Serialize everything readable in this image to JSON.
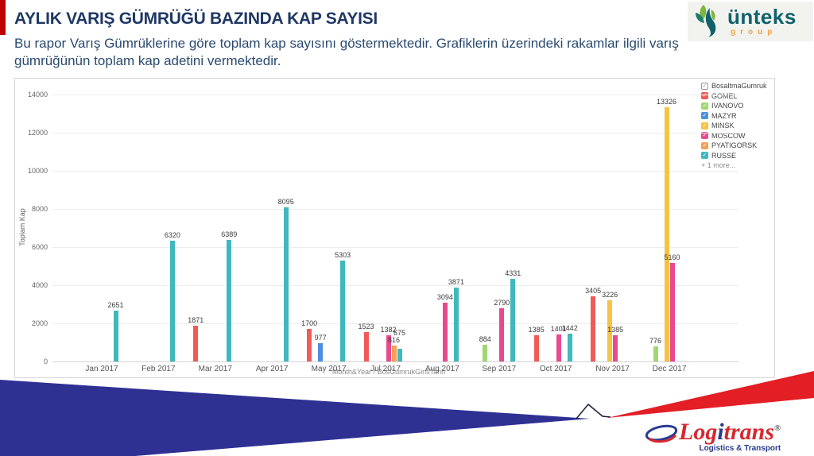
{
  "header": {
    "title": "AYLIK VARIŞ GÜMRÜĞÜ BAZINDA KAP SAYISI",
    "subtitle": "Bu rapor Varış Gümrüklerine göre toplam kap sayısını göstermektedir. Grafiklerin üzerindeki rakamlar ilgili varış gümrüğünün toplam kap adetini vermektedir."
  },
  "unteks_logo": {
    "name": "ünteks",
    "sub": "group"
  },
  "logitrans_logo": {
    "part1": "Log",
    "part2": "i",
    "part3": "trans",
    "reg": "®",
    "tagline": "Logistics & Transport"
  },
  "colors": {
    "accent_red": "#C00000",
    "title_navy": "#1F3864",
    "wedge_blue": "#2E3192",
    "wedge_red": "#E31E25"
  },
  "chart_data": {
    "type": "bar",
    "title": "",
    "xlabel": "Month&Year / BosGumrukGirisTarih",
    "ylabel": "Toplam Kap",
    "ylim": [
      0,
      14000
    ],
    "ytick_step": 2000,
    "grid": true,
    "legend_position": "top-right",
    "legend_header": "BosaltmaGumruk",
    "legend_more": "+ 1 more...",
    "categories": [
      "Jan 2017",
      "Feb 2017",
      "Mar 2017",
      "Apr 2017",
      "May 2017",
      "Jul 2017",
      "Aug 2017",
      "Sep 2017",
      "Oct 2017",
      "Nov 2017",
      "Dec 2017"
    ],
    "series": [
      {
        "name": "GOMEL",
        "color": "#F15B57",
        "values": [
          null,
          null,
          1871,
          null,
          1700,
          1523,
          null,
          null,
          1385,
          3405,
          null
        ]
      },
      {
        "name": "IVANOVO",
        "color": "#9FD870",
        "values": [
          null,
          null,
          null,
          null,
          null,
          null,
          null,
          884,
          null,
          null,
          776
        ]
      },
      {
        "name": "MAZYR",
        "color": "#4D8FDC",
        "values": [
          null,
          null,
          null,
          null,
          977,
          null,
          null,
          null,
          null,
          null,
          null
        ]
      },
      {
        "name": "MINSK",
        "color": "#F6C344",
        "values": [
          null,
          null,
          null,
          null,
          null,
          null,
          null,
          null,
          null,
          3226,
          13326
        ]
      },
      {
        "name": "MOSCOW",
        "color": "#E9498F",
        "values": [
          null,
          null,
          null,
          null,
          null,
          1382,
          3094,
          2790,
          1401,
          1385,
          5160
        ]
      },
      {
        "name": "PYATIGORSK",
        "color": "#F5A057",
        "values": [
          null,
          null,
          null,
          null,
          null,
          816,
          null,
          null,
          null,
          null,
          null
        ]
      },
      {
        "name": "RUSSE",
        "color": "#3FB8BE",
        "values": [
          2651,
          6320,
          6389,
          8095,
          5303,
          675,
          3871,
          4331,
          1442,
          null,
          null
        ]
      }
    ]
  }
}
